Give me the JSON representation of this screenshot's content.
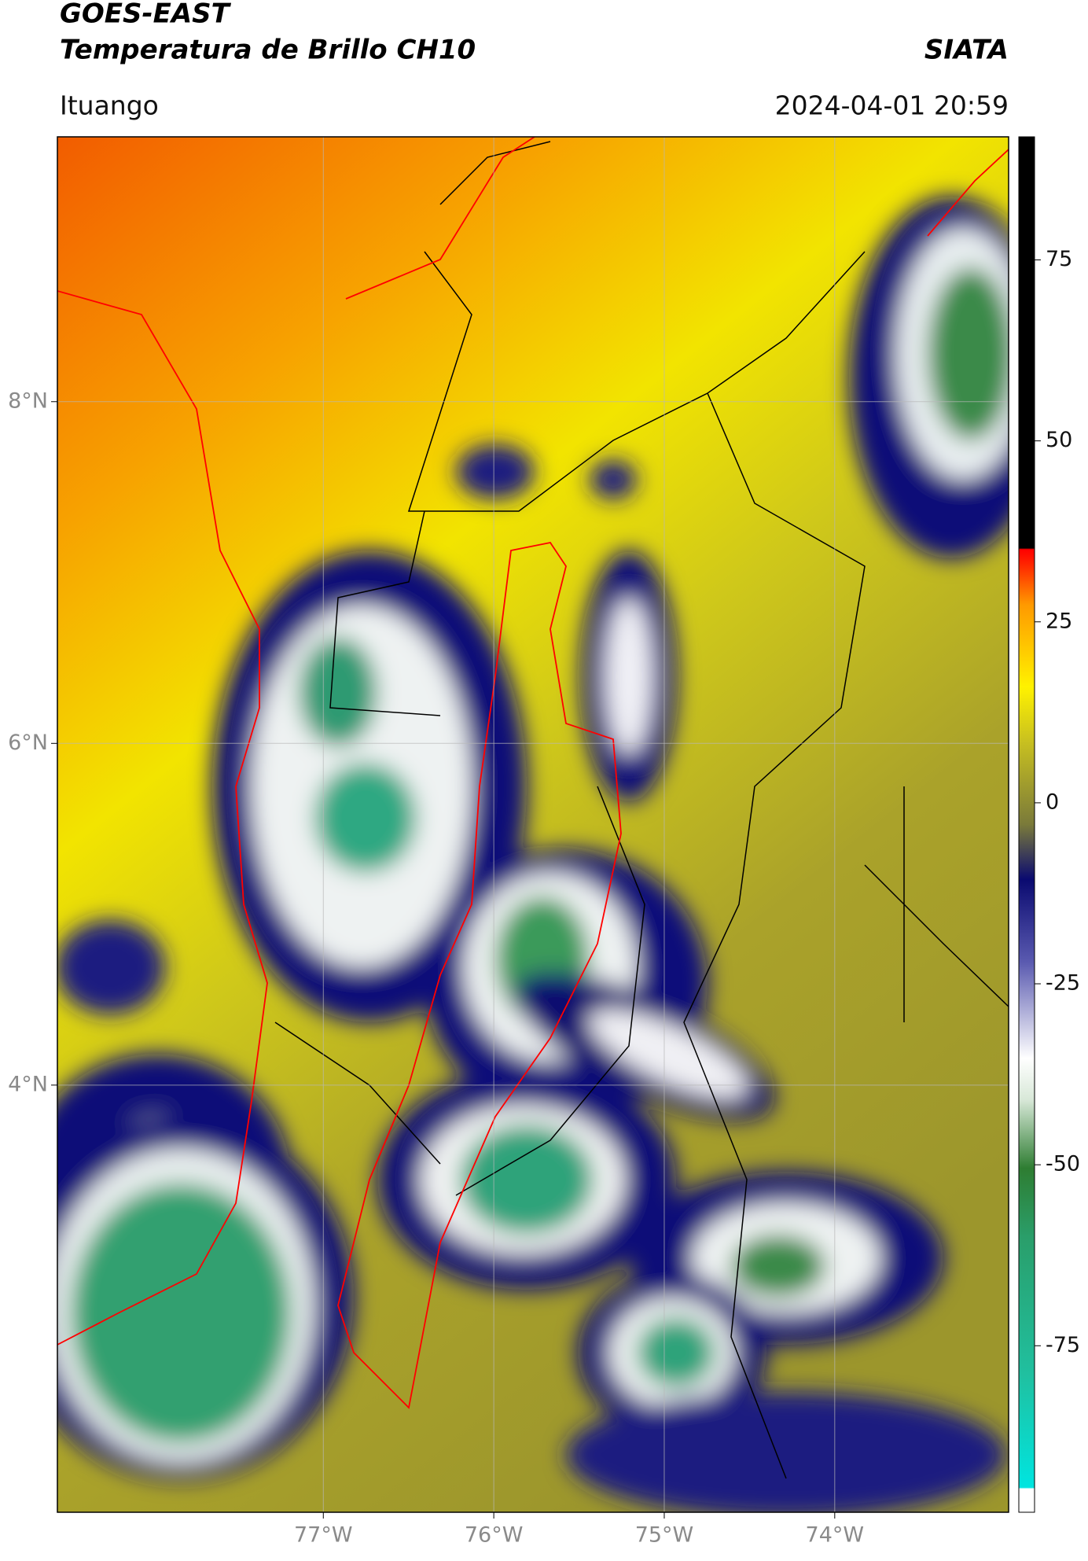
{
  "header": {
    "title": "GOES-EAST",
    "subtitle": "Temperatura de Brillo CH10",
    "source": "SIATA",
    "location": "Ituango",
    "datetime": "2024-04-01 20:59"
  },
  "map": {
    "xlim": [
      -78.56,
      -72.98
    ],
    "ylim": [
      1.5,
      9.55
    ],
    "xticks": [
      {
        "value": -77,
        "label": "77°W"
      },
      {
        "value": -76,
        "label": "76°W"
      },
      {
        "value": -75,
        "label": "75°W"
      },
      {
        "value": -74,
        "label": "74°W"
      }
    ],
    "yticks": [
      {
        "value": 8,
        "label": "8°N"
      },
      {
        "value": 6,
        "label": "6°N"
      },
      {
        "value": 4,
        "label": "4°N"
      }
    ],
    "grid": true
  },
  "colorbar": {
    "lim": [
      -98,
      92
    ],
    "ticks": [
      75,
      50,
      25,
      0,
      -25,
      -50,
      -75
    ]
  }
}
